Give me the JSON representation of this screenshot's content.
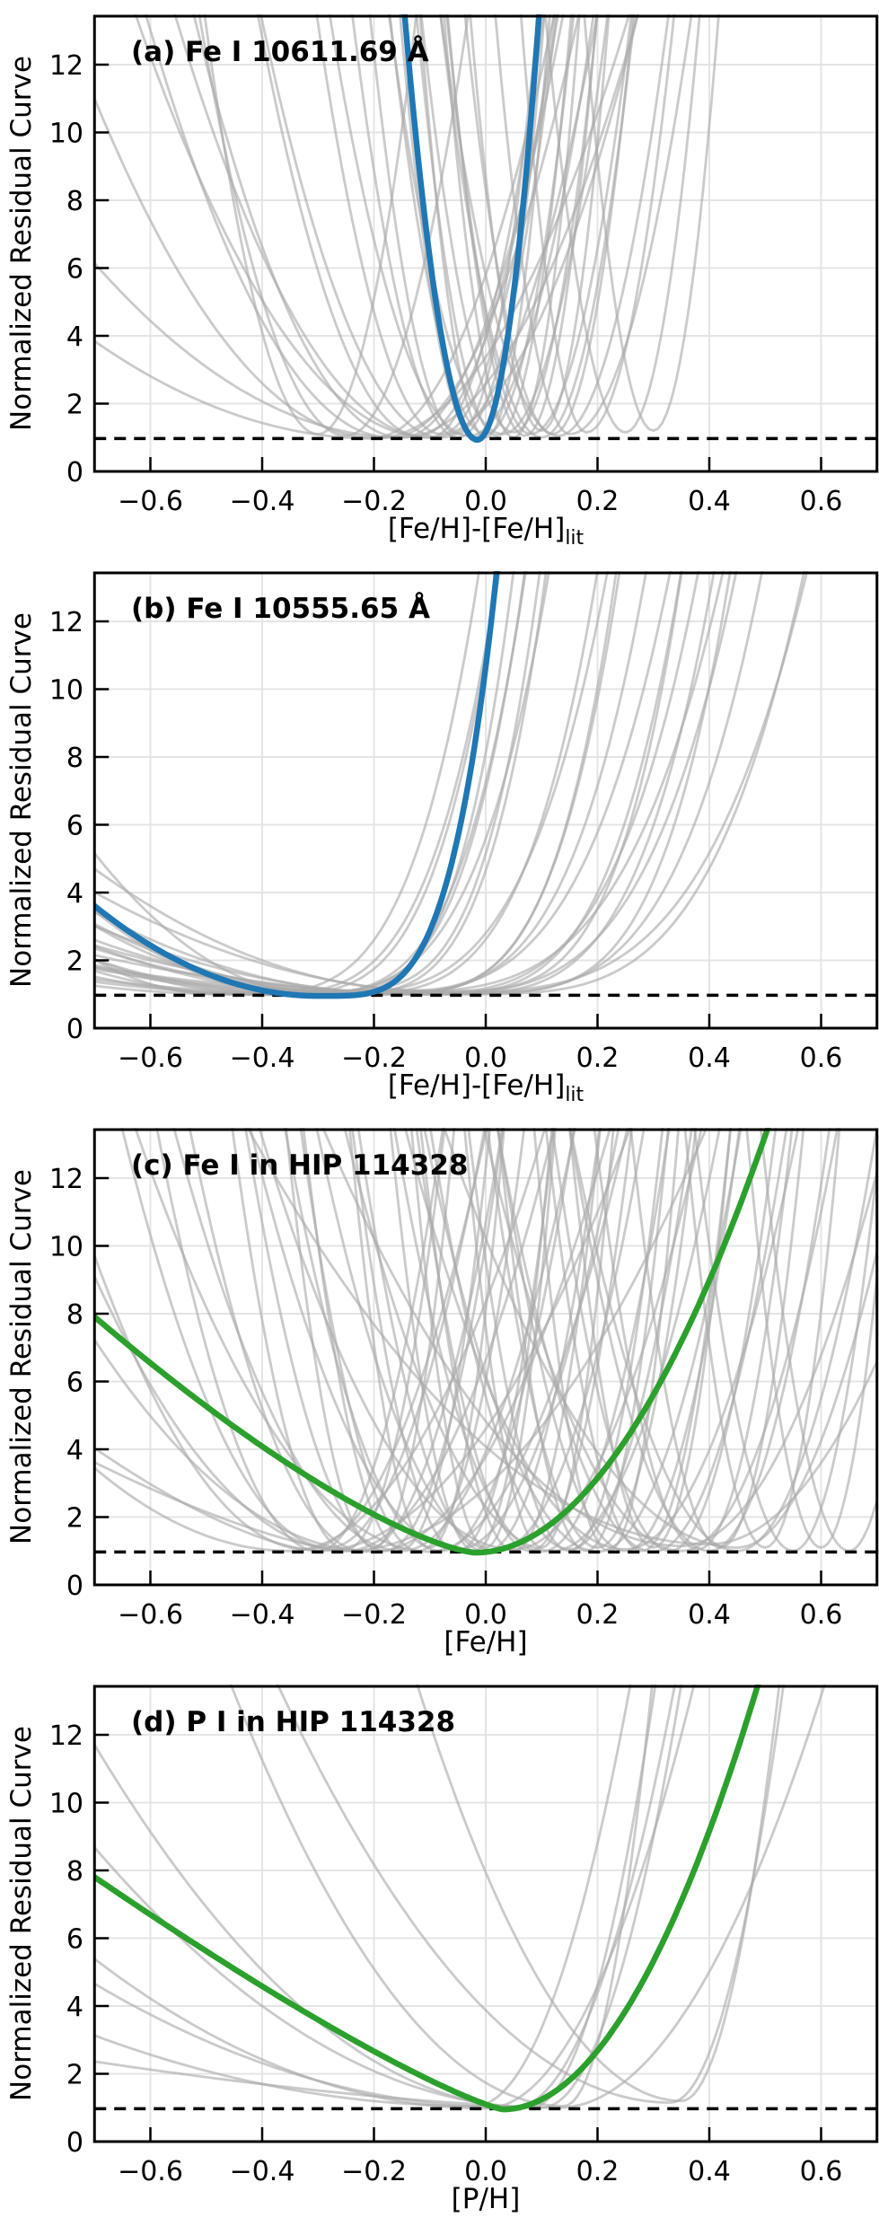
{
  "figure": {
    "ylabel": "Normalized Residual Curve",
    "colors": {
      "highlight_blue": "#1f77b4",
      "highlight_green": "#2ca02c",
      "background_curve_gray": "#aaaaaa",
      "grid": "#e4e4e4",
      "dashed_reference": "#000000",
      "axis": "#000000"
    },
    "axis": {
      "xlim": [
        -0.7,
        0.7
      ],
      "ylim": [
        0,
        13.43
      ],
      "xticks": [
        -0.6,
        -0.4,
        -0.2,
        0.0,
        0.2,
        0.4,
        0.6
      ],
      "xtick_labels": [
        "−0.6",
        "−0.4",
        "−0.2",
        "0.0",
        "0.2",
        "0.4",
        "0.6"
      ],
      "yticks": [
        0,
        2,
        4,
        6,
        8,
        10,
        12
      ],
      "ytick_labels": [
        "0",
        "2",
        "4",
        "6",
        "8",
        "10",
        "12"
      ],
      "grid": true,
      "dashed_reference_y": 0.97
    }
  },
  "chart_data": [
    {
      "type": "line",
      "id": "a",
      "title": "(a) Fe I 10611.69 Å",
      "xlabel": "[Fe/H]-[Fe/H]",
      "xlabel_sub": "lit",
      "ylabel": "Normalized Residual Curve",
      "note": "curves parameterized as y = ymin + a_side*|x-x0|^p_side, params [x0, ymin, aLeft, pLeft, aRight, pRight]",
      "highlight": {
        "color": "#1f77b4",
        "minimum_x": -0.015,
        "minimum_y": 0.93,
        "params": [
          -0.015,
          0.93,
          740,
          2,
          1030,
          2
        ]
      },
      "background_curves": [
        [
          -0.2,
          0.97,
          11.5,
          2,
          60,
          2
        ],
        [
          -0.2,
          1.0,
          40,
          2,
          120,
          2
        ],
        [
          -0.15,
          1.0,
          17,
          2,
          70,
          2
        ],
        [
          -0.15,
          1.0,
          90,
          2,
          150,
          2
        ],
        [
          -0.17,
          1.0,
          65,
          2,
          110,
          2
        ],
        [
          -0.12,
          1.05,
          150,
          2,
          200,
          2
        ],
        [
          -0.1,
          1.0,
          60,
          2,
          90,
          2
        ],
        [
          -0.1,
          1.0,
          45,
          2,
          300,
          2
        ],
        [
          -0.08,
          1.1,
          250,
          2,
          300,
          2
        ],
        [
          -0.08,
          1.0,
          120,
          2,
          160,
          2
        ],
        [
          -0.05,
          1.0,
          350,
          2,
          400,
          2
        ],
        [
          -0.05,
          1.1,
          500,
          2,
          600,
          2
        ],
        [
          -0.03,
          1.05,
          200,
          2,
          250,
          2
        ],
        [
          -0.02,
          1.0,
          700,
          2,
          800,
          2
        ],
        [
          0.0,
          1.1,
          420,
          2,
          500,
          2
        ],
        [
          0.0,
          1.0,
          900,
          2,
          950,
          2
        ],
        [
          0.02,
          1.05,
          600,
          2,
          700,
          2
        ],
        [
          0.03,
          1.1,
          300,
          2,
          350,
          2
        ],
        [
          0.05,
          1.0,
          800,
          2,
          900,
          2
        ],
        [
          0.05,
          1.15,
          450,
          2,
          550,
          2
        ],
        [
          0.07,
          1.05,
          650,
          2,
          750,
          2
        ],
        [
          0.08,
          1.1,
          550,
          2,
          380,
          2
        ],
        [
          0.1,
          1.0,
          380,
          2,
          450,
          2
        ],
        [
          0.1,
          1.2,
          750,
          2,
          850,
          2
        ],
        [
          0.12,
          1.1,
          500,
          2,
          600,
          2
        ],
        [
          0.13,
          1.05,
          280,
          2,
          320,
          2
        ],
        [
          0.15,
          1.1,
          700,
          2,
          260,
          2
        ],
        [
          0.18,
          1.15,
          900,
          2,
          500,
          2
        ],
        [
          -0.25,
          1.05,
          180,
          2,
          260,
          2
        ],
        [
          -0.3,
          1.1,
          300,
          2,
          400,
          2
        ],
        [
          0.25,
          1.15,
          600,
          2,
          700,
          2
        ],
        [
          0.3,
          1.2,
          800,
          2,
          900,
          2
        ]
      ]
    },
    {
      "type": "line",
      "id": "b",
      "title": "(b) Fe I 10555.65 Å",
      "xlabel": "[Fe/H]-[Fe/H]",
      "xlabel_sub": "lit",
      "ylabel": "Normalized Residual Curve",
      "highlight": {
        "color": "#1f77b4",
        "minimum_x": -0.3,
        "minimum_y": 0.95,
        "params": [
          -0.3,
          0.95,
          16.6,
          2,
          1200,
          4
        ]
      },
      "background_curves": [
        [
          -0.45,
          1.0,
          4,
          2,
          250,
          4
        ],
        [
          -0.4,
          0.98,
          6,
          2,
          180,
          4
        ],
        [
          -0.38,
          1.0,
          10,
          2,
          300,
          4
        ],
        [
          -0.35,
          1.0,
          3,
          2,
          120,
          4
        ],
        [
          -0.35,
          1.05,
          8,
          2,
          400,
          4
        ],
        [
          -0.3,
          1.0,
          5,
          2,
          200,
          4
        ],
        [
          -0.3,
          1.1,
          12,
          2,
          500,
          4
        ],
        [
          -0.3,
          1.0,
          26,
          2,
          450,
          4
        ],
        [
          -0.28,
          1.0,
          2.5,
          2,
          90,
          4
        ],
        [
          -0.25,
          1.0,
          7,
          2,
          150,
          4
        ],
        [
          -0.25,
          1.05,
          4,
          2,
          60,
          4
        ],
        [
          -0.22,
          1.0,
          9,
          2,
          280,
          4
        ],
        [
          -0.2,
          1.0,
          3,
          2,
          110,
          4
        ],
        [
          -0.2,
          1.1,
          6,
          2,
          350,
          4
        ],
        [
          -0.18,
          1.0,
          5,
          2,
          80,
          4
        ],
        [
          -0.15,
          1.0,
          8,
          2,
          200,
          4
        ],
        [
          -0.15,
          1.05,
          2.5,
          2,
          45,
          4
        ],
        [
          -0.12,
          1.0,
          6,
          2,
          160,
          4
        ],
        [
          -0.1,
          1.0,
          4,
          2,
          100,
          4
        ],
        [
          -0.1,
          1.1,
          10,
          2,
          300,
          4
        ],
        [
          -0.08,
          1.0,
          3,
          2,
          70,
          4
        ],
        [
          -0.05,
          1.05,
          7,
          2,
          220,
          4
        ],
        [
          -0.42,
          1.0,
          8.8,
          2,
          320,
          4
        ],
        [
          -0.33,
          1.0,
          18,
          2,
          600,
          4
        ],
        [
          -0.48,
          1.0,
          21,
          2,
          260,
          4
        ]
      ]
    },
    {
      "type": "line",
      "id": "c",
      "title": "(c) Fe I in HIP 114328",
      "xlabel": "[Fe/H]",
      "xlabel_sub": "",
      "ylabel": "Normalized Residual Curve",
      "highlight": {
        "color": "#2ca02c",
        "minimum_x": -0.02,
        "minimum_y": 0.95,
        "params": [
          -0.02,
          0.95,
          11.8,
          1.37,
          45.5,
          2
        ]
      },
      "background_curves": [
        [
          -0.35,
          1.0,
          20,
          2,
          60,
          2
        ],
        [
          -0.32,
          1.05,
          60,
          2,
          120,
          2
        ],
        [
          -0.3,
          1.0,
          150,
          2,
          250,
          2
        ],
        [
          -0.28,
          1.1,
          90,
          2,
          160,
          2
        ],
        [
          -0.25,
          1.0,
          40,
          2,
          90,
          2
        ],
        [
          -0.25,
          1.05,
          300,
          2,
          400,
          2
        ],
        [
          -0.22,
          1.0,
          130,
          2,
          200,
          2
        ],
        [
          -0.2,
          0.98,
          25,
          2,
          70,
          2
        ],
        [
          -0.2,
          1.1,
          500,
          2,
          600,
          2
        ],
        [
          -0.18,
          1.0,
          200,
          2,
          280,
          2
        ],
        [
          -0.15,
          1.0,
          75,
          2,
          130,
          2
        ],
        [
          -0.15,
          1.05,
          400,
          2,
          500,
          2
        ],
        [
          -0.12,
          1.0,
          280,
          2,
          350,
          2
        ],
        [
          -0.1,
          0.98,
          45,
          2,
          100,
          2
        ],
        [
          -0.1,
          1.1,
          600,
          2,
          700,
          2
        ],
        [
          -0.08,
          1.0,
          160,
          2,
          220,
          2
        ],
        [
          -0.05,
          1.0,
          350,
          2,
          420,
          2
        ],
        [
          -0.05,
          1.05,
          90,
          2,
          150,
          2
        ],
        [
          -0.02,
          1.0,
          550,
          2,
          650,
          2
        ],
        [
          0.0,
          0.98,
          240,
          2,
          300,
          2
        ],
        [
          0.0,
          1.1,
          700,
          2,
          800,
          2
        ],
        [
          0.02,
          1.0,
          120,
          2,
          180,
          2
        ],
        [
          0.05,
          1.0,
          450,
          2,
          520,
          2
        ],
        [
          0.05,
          1.05,
          60,
          2,
          110,
          2
        ],
        [
          0.08,
          1.0,
          300,
          2,
          380,
          2
        ],
        [
          0.1,
          0.98,
          180,
          2,
          240,
          2
        ],
        [
          0.1,
          1.1,
          650,
          2,
          750,
          2
        ],
        [
          0.12,
          1.0,
          90,
          2,
          140,
          2
        ],
        [
          0.15,
          1.0,
          380,
          2,
          450,
          2
        ],
        [
          0.15,
          1.05,
          200,
          2,
          260,
          2
        ],
        [
          0.18,
          1.0,
          500,
          2,
          580,
          2
        ],
        [
          0.2,
          0.98,
          130,
          2,
          190,
          2
        ],
        [
          0.2,
          1.1,
          320,
          2,
          400,
          2
        ],
        [
          0.22,
          1.0,
          700,
          2,
          800,
          2
        ],
        [
          0.25,
          1.0,
          240,
          2,
          300,
          2
        ],
        [
          0.25,
          1.05,
          80,
          2,
          130,
          2
        ],
        [
          0.28,
          1.0,
          420,
          2,
          500,
          2
        ],
        [
          0.3,
          0.98,
          160,
          2,
          220,
          2
        ],
        [
          0.3,
          1.1,
          550,
          2,
          650,
          2
        ],
        [
          0.33,
          1.0,
          280,
          2,
          350,
          2
        ],
        [
          0.35,
          1.0,
          100,
          2,
          160,
          2
        ],
        [
          0.38,
          1.05,
          360,
          2,
          440,
          2
        ],
        [
          0.4,
          1.0,
          200,
          2,
          270,
          2
        ],
        [
          0.42,
          1.1,
          480,
          2,
          560,
          2
        ],
        [
          0.45,
          1.0,
          140,
          2,
          200,
          2
        ],
        [
          -0.3,
          1.0,
          12,
          1.5,
          40,
          2
        ],
        [
          0.35,
          1.15,
          30,
          2,
          90,
          2
        ],
        [
          0.4,
          1.2,
          18,
          2,
          60,
          2
        ],
        [
          0.45,
          1.1,
          45,
          2,
          140,
          2
        ],
        [
          -0.25,
          1.0,
          8,
          1.4,
          30,
          2
        ],
        [
          0.5,
          1.1,
          600,
          2,
          700,
          2
        ],
        [
          0.55,
          1.0,
          400,
          2,
          500,
          2
        ],
        [
          0.6,
          1.1,
          700,
          2,
          800,
          2
        ],
        [
          0.65,
          1.0,
          500,
          2,
          600,
          2
        ]
      ]
    },
    {
      "type": "line",
      "id": "d",
      "title": "(d) P I in HIP 114328",
      "xlabel": "[P/H]",
      "xlabel_sub": "",
      "ylabel": "Normalized Residual Curve",
      "highlight": {
        "color": "#2ca02c",
        "minimum_x": 0.03,
        "minimum_y": 0.95,
        "params": [
          0.03,
          0.95,
          10,
          1.2,
          60,
          2
        ]
      },
      "background_curves": [
        [
          0.33,
          1.15,
          25,
          2,
          300,
          2
        ],
        [
          0.1,
          1.0,
          12,
          2,
          200,
          2
        ],
        [
          0.05,
          1.0,
          6.5,
          2,
          150,
          2
        ],
        [
          -0.02,
          1.05,
          4.5,
          2,
          160,
          2
        ],
        [
          0.13,
          1.0,
          1.8,
          1.5,
          55,
          2
        ],
        [
          0.0,
          0.98,
          9,
          2,
          90,
          2
        ],
        [
          0.08,
          1.0,
          17.6,
          2,
          250,
          2
        ],
        [
          0.35,
          1.2,
          55,
          2,
          400,
          2
        ],
        [
          0.14,
          1.05,
          35,
          2,
          500,
          2
        ]
      ]
    }
  ]
}
